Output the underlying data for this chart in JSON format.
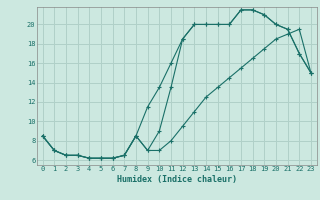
{
  "xlabel": "Humidex (Indice chaleur)",
  "bg_color": "#cce8e0",
  "grid_color": "#b0d0c8",
  "line_color": "#1a7068",
  "spine_color": "#888888",
  "xlim": [
    -0.5,
    23.5
  ],
  "ylim": [
    5.5,
    21.8
  ],
  "xticks": [
    0,
    1,
    2,
    3,
    4,
    5,
    6,
    7,
    8,
    9,
    10,
    11,
    12,
    13,
    14,
    15,
    16,
    17,
    18,
    19,
    20,
    21,
    22,
    23
  ],
  "yticks": [
    6,
    8,
    10,
    12,
    14,
    16,
    18,
    20
  ],
  "line1_x": [
    0,
    1,
    2,
    3,
    4,
    5,
    6,
    7,
    8,
    9,
    10,
    11,
    12,
    13,
    14,
    15,
    16,
    17,
    18,
    19,
    20,
    21,
    22,
    23
  ],
  "line1_y": [
    8.5,
    7.0,
    6.5,
    6.5,
    6.2,
    6.2,
    6.2,
    6.5,
    8.5,
    11.5,
    13.5,
    16.0,
    18.5,
    20.0,
    20.0,
    20.0,
    20.0,
    21.5,
    21.5,
    21.0,
    20.0,
    19.5,
    17.0,
    15.0
  ],
  "line2_x": [
    0,
    1,
    2,
    3,
    4,
    5,
    6,
    7,
    8,
    9,
    10,
    11,
    12,
    13,
    14,
    15,
    16,
    17,
    18,
    19,
    20,
    21,
    22,
    23
  ],
  "line2_y": [
    8.5,
    7.0,
    6.5,
    6.5,
    6.2,
    6.2,
    6.2,
    6.5,
    8.5,
    7.0,
    9.0,
    13.5,
    18.5,
    20.0,
    20.0,
    20.0,
    20.0,
    21.5,
    21.5,
    21.0,
    20.0,
    19.5,
    17.0,
    15.0
  ],
  "line3_x": [
    0,
    1,
    2,
    3,
    4,
    5,
    6,
    7,
    8,
    9,
    10,
    11,
    12,
    13,
    14,
    15,
    16,
    17,
    18,
    19,
    20,
    21,
    22,
    23
  ],
  "line3_y": [
    8.5,
    7.0,
    6.5,
    6.5,
    6.2,
    6.2,
    6.2,
    6.5,
    8.5,
    7.0,
    7.0,
    8.0,
    9.5,
    11.0,
    12.5,
    13.5,
    14.5,
    15.5,
    16.5,
    17.5,
    18.5,
    19.0,
    19.5,
    15.0
  ]
}
